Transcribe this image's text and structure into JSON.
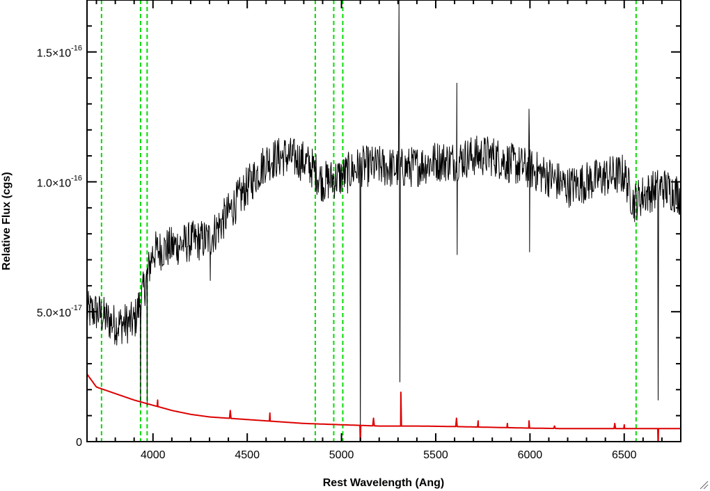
{
  "chart_data": {
    "type": "line",
    "title": "",
    "xlabel": "Rest Wavelength (Ang)",
    "ylabel": "Relative Flux (cgs)",
    "xlim": [
      3650,
      6800
    ],
    "ylim": [
      0,
      1.7e-16
    ],
    "x_ticks": [
      {
        "value": 4000,
        "label": "4000"
      },
      {
        "value": 4500,
        "label": "4500"
      },
      {
        "value": 5000,
        "label": "5000"
      },
      {
        "value": 5500,
        "label": "5500"
      },
      {
        "value": 6000,
        "label": "6000"
      },
      {
        "value": 6500,
        "label": "6500"
      }
    ],
    "y_ticks": [
      {
        "value": 0,
        "mantissa": "0",
        "exponent": ""
      },
      {
        "value": 5e-17,
        "mantissa": "5.0×10",
        "exponent": "-17"
      },
      {
        "value": 1e-16,
        "mantissa": "1.0×10",
        "exponent": "-16"
      },
      {
        "value": 1.5e-16,
        "mantissa": "1.5×10",
        "exponent": "-16"
      }
    ],
    "grid": false,
    "vertical_markers": {
      "color": "#00dd00",
      "style": "dashed",
      "x": [
        3727,
        3934,
        3969,
        4861,
        4959,
        5007,
        6563
      ]
    },
    "series": [
      {
        "color": "#000000",
        "style": "noisy",
        "noise_amplitude": 8e-18,
        "continuum": [
          [
            3650,
            5e-17
          ],
          [
            3700,
            5e-17
          ],
          [
            3800,
            4.5e-17
          ],
          [
            3900,
            4.6e-17
          ],
          [
            3950,
            5.8e-17
          ],
          [
            4000,
            7.3e-17
          ],
          [
            4100,
            7.5e-17
          ],
          [
            4200,
            7.7e-17
          ],
          [
            4300,
            7.8e-17
          ],
          [
            4400,
            8.8e-17
          ],
          [
            4500,
            9.8e-17
          ],
          [
            4600,
            1.08e-16
          ],
          [
            4700,
            1.1e-16
          ],
          [
            4800,
            1.08e-16
          ],
          [
            4850,
            1.05e-16
          ],
          [
            4900,
            1e-16
          ],
          [
            5000,
            1.02e-16
          ],
          [
            5100,
            1.06e-16
          ],
          [
            5200,
            1.06e-16
          ],
          [
            5300,
            1.05e-16
          ],
          [
            5400,
            1.06e-16
          ],
          [
            5500,
            1.08e-16
          ],
          [
            5600,
            1.08e-16
          ],
          [
            5700,
            1.1e-16
          ],
          [
            5800,
            1.1e-16
          ],
          [
            5900,
            1.07e-16
          ],
          [
            6000,
            1.05e-16
          ],
          [
            6100,
            1.02e-16
          ],
          [
            6200,
            9.8e-17
          ],
          [
            6300,
            1e-16
          ],
          [
            6400,
            1.02e-16
          ],
          [
            6500,
            1.03e-16
          ],
          [
            6550,
            9.2e-17
          ],
          [
            6600,
            9.5e-17
          ],
          [
            6700,
            9.8e-17
          ],
          [
            6800,
            9.5e-17
          ]
        ],
        "features": [
          [
            3934,
            1.4e-17
          ],
          [
            3969,
            1.4e-17
          ],
          [
            4304,
            6.2e-17
          ],
          [
            5100,
            0.0
          ],
          [
            5305,
            1.7e-16
          ],
          [
            5310,
            2.3e-17
          ],
          [
            5612,
            1.38e-16
          ],
          [
            5614,
            7.2e-17
          ],
          [
            5995,
            1.28e-16
          ],
          [
            5998,
            7.3e-17
          ],
          [
            6680,
            1.6e-17
          ]
        ]
      },
      {
        "color": "#dd0000",
        "style": "smooth",
        "continuum": [
          [
            3650,
            2.6e-17
          ],
          [
            3700,
            2.1e-17
          ],
          [
            3800,
            1.85e-17
          ],
          [
            3900,
            1.6e-17
          ],
          [
            4000,
            1.4e-17
          ],
          [
            4100,
            1.2e-17
          ],
          [
            4200,
            1.05e-17
          ],
          [
            4300,
            9.5e-18
          ],
          [
            4400,
            9e-18
          ],
          [
            4500,
            8.5e-18
          ],
          [
            4600,
            8e-18
          ],
          [
            4800,
            7e-18
          ],
          [
            5000,
            6.5e-18
          ],
          [
            5200,
            6e-18
          ],
          [
            5400,
            6e-18
          ],
          [
            5600,
            5.8e-18
          ],
          [
            5800,
            5.5e-18
          ],
          [
            6000,
            5.2e-18
          ],
          [
            6200,
            5e-18
          ],
          [
            6400,
            5e-18
          ],
          [
            6600,
            5e-18
          ],
          [
            6800,
            5e-18
          ]
        ],
        "features": [
          [
            4025,
            1.6e-17
          ],
          [
            4410,
            1.2e-17
          ],
          [
            4620,
            1.1e-17
          ],
          [
            5100,
            -2e-18
          ],
          [
            5170,
            9e-18
          ],
          [
            5315,
            1.9e-17
          ],
          [
            5610,
            9e-18
          ],
          [
            5725,
            8e-18
          ],
          [
            5880,
            7e-18
          ],
          [
            5995,
            8e-18
          ],
          [
            6130,
            6e-18
          ],
          [
            6450,
            7e-18
          ],
          [
            6500,
            6.5e-18
          ],
          [
            6680,
            -2e-18
          ]
        ]
      }
    ]
  },
  "icons": {
    "resize_grip": "resize-grip-icon"
  }
}
